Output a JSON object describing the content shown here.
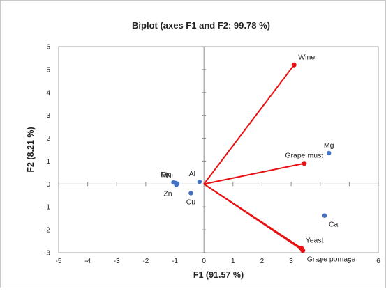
{
  "chart_data": {
    "type": "scatter",
    "title": "Biplot (axes F1 and F2: 99.78 %)",
    "xlabel": "F1 (91.57 %)",
    "ylabel": "F2 (8.21 %)",
    "xlim": [
      -5,
      6
    ],
    "ylim": [
      -3,
      6
    ],
    "xticks": [
      "-5",
      "-4",
      "-3",
      "-2",
      "-1",
      "0",
      "1",
      "2",
      "3",
      "4",
      "5",
      "6"
    ],
    "yticks": [
      "-3",
      "-2",
      "-1",
      "0",
      "1",
      "2",
      "3",
      "4",
      "5",
      "6"
    ],
    "grid": false,
    "colors": {
      "observations": "#4472c4",
      "variables": "#e81010"
    },
    "observations": [
      {
        "label": "Fe",
        "x": -1.05,
        "y": 0.07,
        "label_offset": "above-left"
      },
      {
        "label": "Mn",
        "x": -0.98,
        "y": 0.05,
        "label_offset": "above-left"
      },
      {
        "label": "Ni",
        "x": -0.92,
        "y": 0.02,
        "label_offset": "above-left"
      },
      {
        "label": "Zn",
        "x": -0.95,
        "y": -0.04,
        "label_offset": "below-left"
      },
      {
        "label": "Cu",
        "x": -0.45,
        "y": -0.4,
        "label_offset": "below"
      },
      {
        "label": "Al",
        "x": -0.15,
        "y": 0.1,
        "label_offset": "above-left"
      },
      {
        "label": "Mg",
        "x": 4.3,
        "y": 1.35,
        "label_offset": "above"
      },
      {
        "label": "Ca",
        "x": 4.15,
        "y": -1.38,
        "label_offset": "below-right"
      }
    ],
    "variables": [
      {
        "label": "Wine",
        "x": 3.1,
        "y": 5.2,
        "label_offset": "above-right"
      },
      {
        "label": "Grape must",
        "x": 3.45,
        "y": 0.9,
        "label_offset": "above"
      },
      {
        "label": "Yeast",
        "x": 3.35,
        "y": -2.8,
        "label_offset": "above-right"
      },
      {
        "label": "Grape pomace",
        "x": 3.4,
        "y": -2.9,
        "label_offset": "below-right"
      }
    ]
  }
}
